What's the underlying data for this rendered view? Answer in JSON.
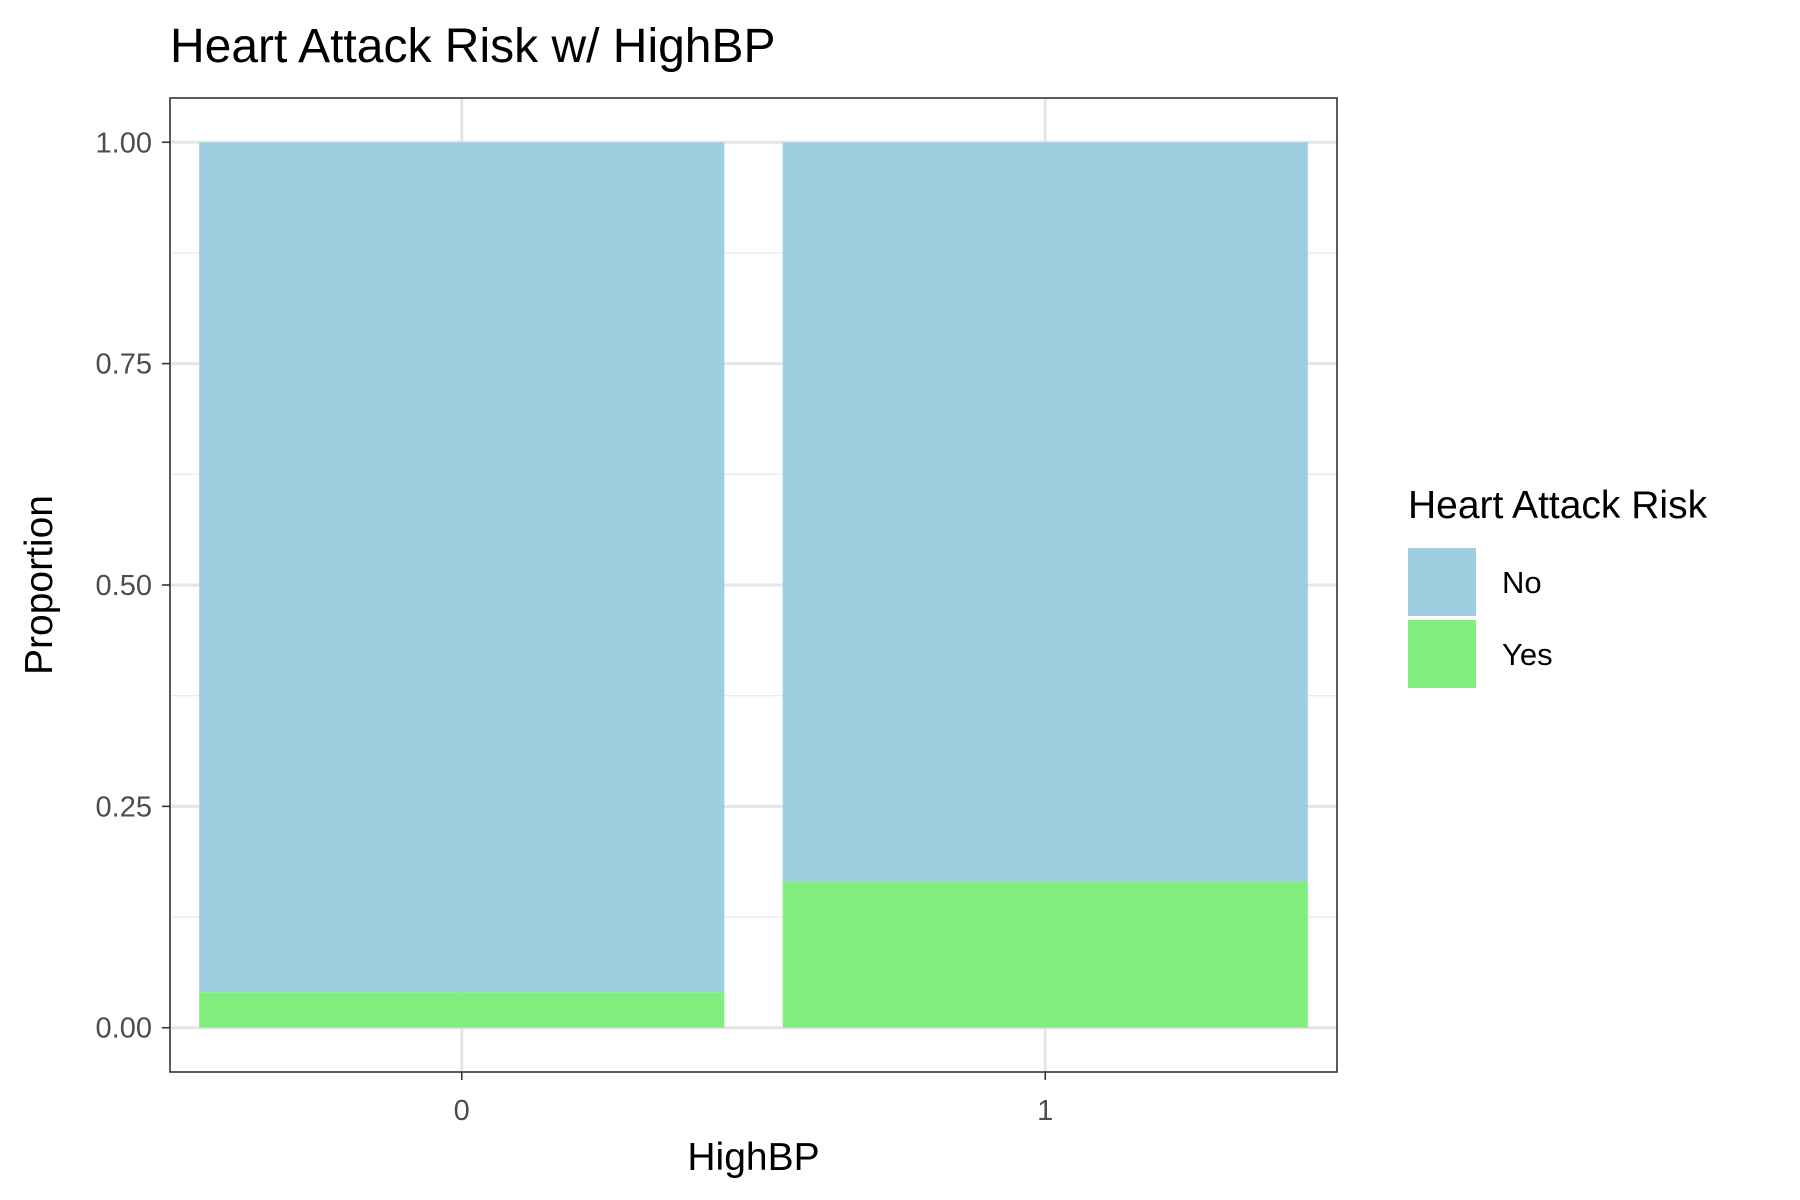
{
  "chart_data": {
    "type": "bar",
    "stacked": true,
    "title": "Heart Attack Risk w/ HighBP",
    "xlabel": "HighBP",
    "ylabel": "Proportion",
    "categories": [
      "0",
      "1"
    ],
    "series": [
      {
        "name": "No",
        "color": "#9ECFE0",
        "values": [
          0.96,
          0.835
        ]
      },
      {
        "name": "Yes",
        "color": "#82EE7E",
        "values": [
          0.04,
          0.165
        ]
      }
    ],
    "ylim": [
      -0.05,
      1.05
    ],
    "yticks": [
      0.0,
      0.25,
      0.5,
      0.75,
      1.0
    ],
    "ytick_labels": [
      "0.00",
      "0.25",
      "0.50",
      "0.75",
      "1.00"
    ],
    "grid": true,
    "legend": {
      "title": "Heart Attack Risk",
      "position": "right",
      "entries": [
        "No",
        "Yes"
      ]
    }
  }
}
